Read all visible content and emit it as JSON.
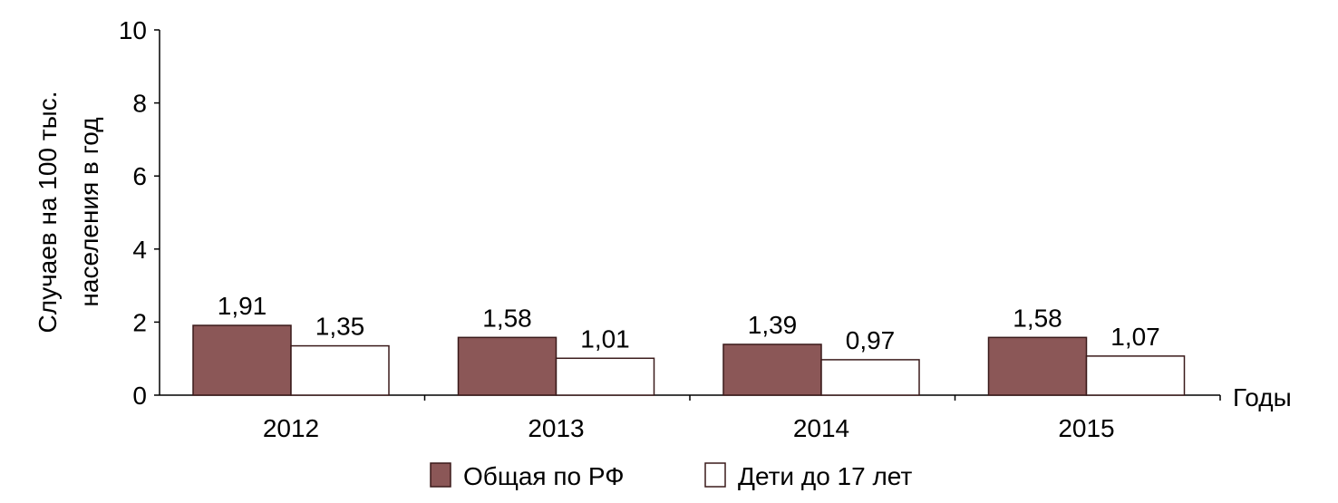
{
  "chart_data": {
    "type": "bar",
    "title": "",
    "ylabel_line1": "Случаев на 100 тыс.",
    "ylabel_line2": "населения в год",
    "xlabel": "Годы",
    "ylim": [
      0,
      10
    ],
    "yticks": [
      0,
      2,
      4,
      6,
      8,
      10
    ],
    "categories": [
      "2012",
      "2013",
      "2014",
      "2015"
    ],
    "series": [
      {
        "name": "Общая по РФ",
        "values": [
          1.91,
          1.58,
          1.39,
          1.58
        ],
        "labels": [
          "1,91",
          "1,58",
          "1,39",
          "1,58"
        ],
        "color": "#8b5757",
        "stroke": "#3a1a1a"
      },
      {
        "name": "Дети до 17 лет",
        "values": [
          1.35,
          1.01,
          0.97,
          1.07
        ],
        "labels": [
          "1,35",
          "1,01",
          "0,97",
          "1,07"
        ],
        "color": "#ffffff",
        "stroke": "#3a1a1a"
      }
    ],
    "grid": false,
    "legend_position": "bottom"
  }
}
